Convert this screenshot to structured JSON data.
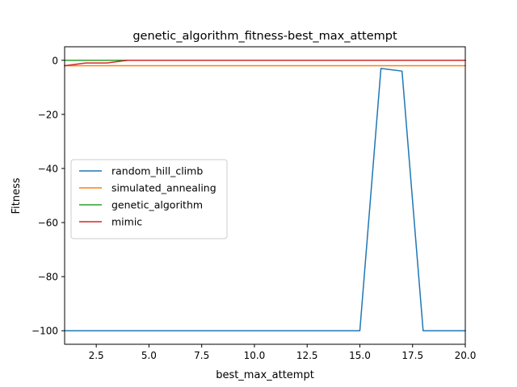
{
  "chart_data": {
    "type": "line",
    "title": "genetic_algorithm_fitness-best_max_attempt",
    "xlabel": "best_max_attempt",
    "ylabel": "Fitness",
    "xlim": [
      1,
      20
    ],
    "ylim": [
      -105,
      5
    ],
    "xticks": [
      2.5,
      5.0,
      7.5,
      10.0,
      12.5,
      15.0,
      17.5,
      20.0
    ],
    "xtick_labels": [
      "2.5",
      "5.0",
      "7.5",
      "10.0",
      "12.5",
      "15.0",
      "17.5",
      "20.0"
    ],
    "yticks": [
      0,
      -20,
      -40,
      -60,
      -80,
      -100
    ],
    "ytick_labels": [
      "0",
      "−20",
      "−40",
      "−60",
      "−80",
      "−100"
    ],
    "grid": false,
    "legend_position": "center-left",
    "x": [
      1,
      2,
      3,
      4,
      5,
      6,
      7,
      8,
      9,
      10,
      11,
      12,
      13,
      14,
      15,
      16,
      17,
      18,
      19,
      20
    ],
    "series": [
      {
        "name": "random_hill_climb",
        "color": "#1f77b4",
        "values": [
          -100,
          -100,
          -100,
          -100,
          -100,
          -100,
          -100,
          -100,
          -100,
          -100,
          -100,
          -100,
          -100,
          -100,
          -100,
          -3,
          -4,
          -100,
          -100,
          -100
        ]
      },
      {
        "name": "simulated_annealing",
        "color": "#ff7f0e",
        "values": [
          -2,
          -2,
          -2,
          -2,
          -2,
          -2,
          -2,
          -2,
          -2,
          -2,
          -2,
          -2,
          -2,
          -2,
          -2,
          -2,
          -2,
          -2,
          -2,
          -2
        ]
      },
      {
        "name": "genetic_algorithm",
        "color": "#2ca02c",
        "values": [
          0,
          0,
          0,
          0,
          0,
          0,
          0,
          0,
          0,
          0,
          0,
          0,
          0,
          0,
          0,
          0,
          0,
          0,
          0,
          0
        ]
      },
      {
        "name": "mimic",
        "color": "#d62728",
        "values": [
          -2,
          -1,
          -1,
          0,
          0,
          0,
          0,
          0,
          0,
          0,
          0,
          0,
          0,
          0,
          0,
          0,
          0,
          0,
          0,
          0
        ]
      }
    ]
  }
}
